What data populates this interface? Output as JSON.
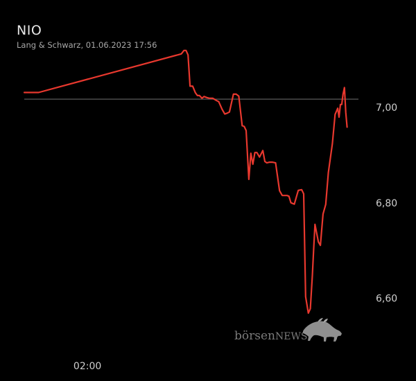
{
  "header": {
    "title": "NIO",
    "subtitle": "Lang & Schwarz, 01.06.2023 17:56"
  },
  "watermark": {
    "text_main": "börsen",
    "text_caps": "NEWS"
  },
  "colors": {
    "background": "#000000",
    "line": "#e8382e",
    "reference_line": "#5a5a5a",
    "tick_text": "#cfcfcf"
  },
  "chart_data": {
    "type": "line",
    "title": "NIO",
    "subtitle": "Lang & Schwarz, 01.06.2023 17:56",
    "y_axis_side": "right",
    "ylim": [
      6.4706,
      7.1694
    ],
    "xlim": [
      0,
      100
    ],
    "reference_line": 7.017,
    "yticks": [
      {
        "value": 7.0,
        "label": "7,00"
      },
      {
        "value": 6.8,
        "label": "6,80"
      },
      {
        "value": 6.6,
        "label": "6,60"
      }
    ],
    "xticks": [
      {
        "value": 18.9,
        "label": "02:00"
      }
    ],
    "series": [
      {
        "x": [
          0,
          4.3,
          47.0,
          47.8,
          48.4,
          49.0,
          49.6,
          50.4,
          51.2,
          51.8,
          52.4,
          53.2,
          53.8,
          54.6,
          55.4,
          56.4,
          57.4,
          58.2,
          59.2,
          60.0,
          60.6,
          61.4,
          62.6,
          63.4,
          64.2,
          65.2,
          65.8,
          66.4,
          67.2,
          67.8,
          68.4,
          69.0,
          69.6,
          70.4,
          71.4,
          72.0,
          72.6,
          73.4,
          74.2,
          75.2,
          76.4,
          77.2,
          77.8,
          78.6,
          79.2,
          79.8,
          80.8,
          82.0,
          83.0,
          83.6,
          84.2,
          85.0,
          85.6,
          86.2,
          86.6,
          87.0,
          87.4,
          88.0,
          88.6,
          89.4,
          90.2,
          91.0,
          92.2,
          93.0,
          93.8,
          94.2,
          94.6,
          95.0,
          95.4,
          95.8,
          96.2,
          96.6
        ],
        "y": [
          7.031,
          7.031,
          7.1117,
          7.1189,
          7.1189,
          7.1095,
          7.0441,
          7.0441,
          7.0304,
          7.0246,
          7.0246,
          7.0189,
          7.0225,
          7.0203,
          7.0189,
          7.0189,
          7.0146,
          7.0117,
          6.9959,
          6.9858,
          6.9873,
          6.9901,
          7.0275,
          7.0275,
          7.0232,
          6.9613,
          6.9599,
          6.9512,
          6.8491,
          6.9038,
          6.8808,
          6.9052,
          6.9052,
          6.8958,
          6.9095,
          6.8865,
          6.8836,
          6.8851,
          6.8851,
          6.8836,
          6.8254,
          6.8153,
          6.8153,
          6.8153,
          6.8139,
          6.8002,
          6.7973,
          6.8261,
          6.8275,
          6.8189,
          6.6037,
          6.5692,
          6.5785,
          6.6476,
          6.7031,
          6.7549,
          6.7398,
          6.7182,
          6.711,
          6.7764,
          6.7966,
          6.8635,
          6.9239,
          6.985,
          6.9979,
          6.9793,
          7.0059,
          7.0059,
          7.0275,
          7.0412,
          6.9893,
          6.9584
        ]
      }
    ]
  }
}
